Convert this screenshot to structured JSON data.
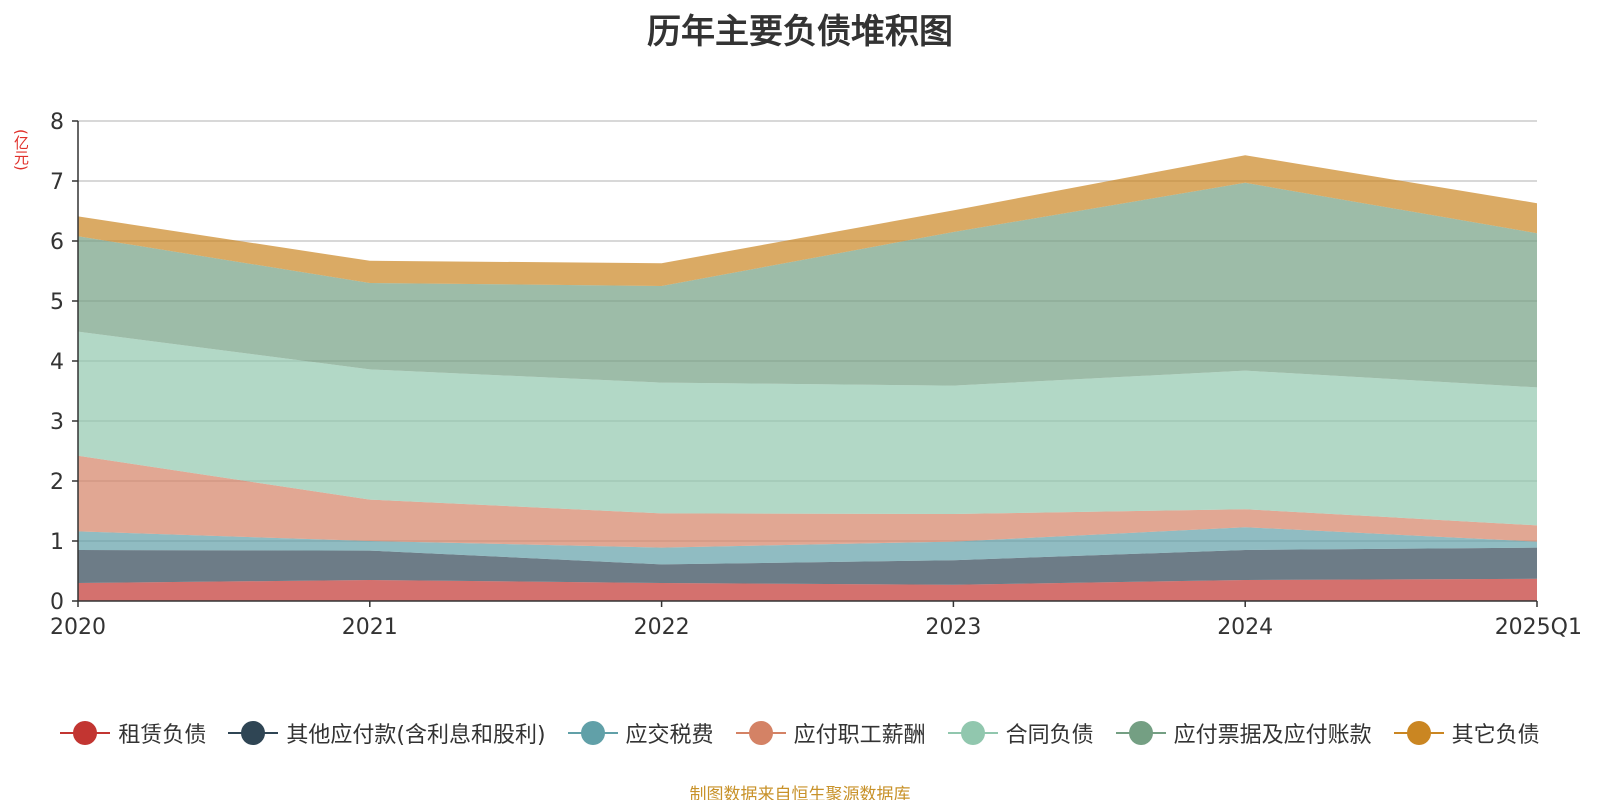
{
  "chart_data": {
    "type": "area",
    "stacked": true,
    "title": "历年主要负债堆积图",
    "ylabel": "(亿元)",
    "ylim": [
      0,
      8
    ],
    "yticks": [
      "0",
      "1",
      "2",
      "3",
      "4",
      "5",
      "6",
      "7",
      "8"
    ],
    "categories": [
      "2020",
      "2021",
      "2022",
      "2023",
      "2024",
      "2025Q1"
    ],
    "grid": true,
    "legend_position": "bottom",
    "series": [
      {
        "name": "租赁负债",
        "color": "#c23531",
        "values": [
          0.3,
          0.35,
          0.3,
          0.27,
          0.35,
          0.37
        ]
      },
      {
        "name": "其他应付款(含利息和股利)",
        "color": "#2f4554",
        "values": [
          0.55,
          0.49,
          0.31,
          0.41,
          0.5,
          0.52
        ]
      },
      {
        "name": "应交税费",
        "color": "#61a0a8",
        "values": [
          0.31,
          0.16,
          0.28,
          0.31,
          0.38,
          0.1
        ]
      },
      {
        "name": "应付职工薪酬",
        "color": "#d48265",
        "values": [
          1.26,
          0.69,
          0.57,
          0.46,
          0.3,
          0.27
        ]
      },
      {
        "name": "合同负债",
        "color": "#91c7ae",
        "values": [
          2.07,
          2.17,
          2.18,
          2.14,
          2.31,
          2.3
        ]
      },
      {
        "name": "应付票据及应付账款",
        "color": "#749f83",
        "values": [
          1.59,
          1.44,
          1.61,
          2.56,
          3.13,
          2.57
        ]
      },
      {
        "name": "其它负债",
        "color": "#ca8622",
        "values": [
          0.33,
          0.37,
          0.38,
          0.36,
          0.46,
          0.5
        ]
      }
    ]
  },
  "source_note": "制图数据来自恒生聚源数据库"
}
